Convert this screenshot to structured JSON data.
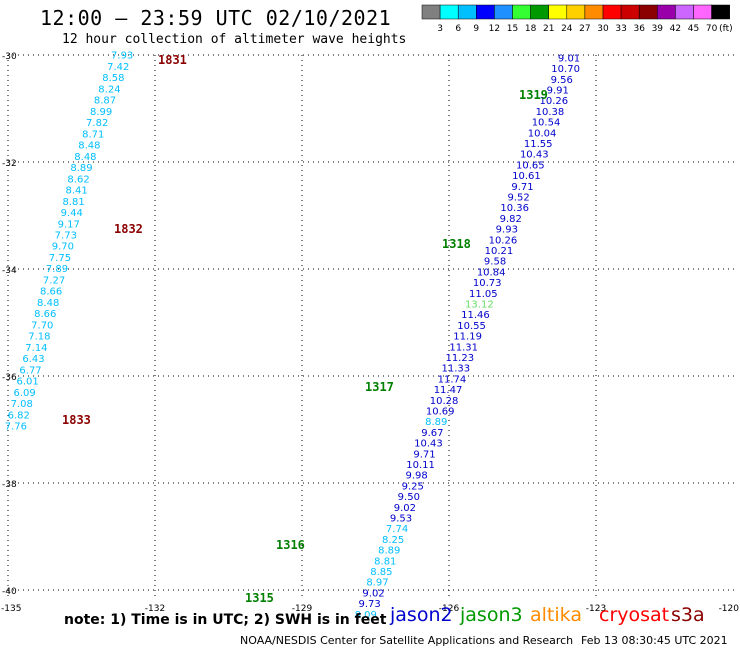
{
  "header": {
    "title": "12:00 – 23:59 UTC 02/10/2021",
    "subtitle": "12 hour collection of altimeter wave heights"
  },
  "legend": {
    "unit": "(ft)",
    "colors": [
      "#808080",
      "#00ffff",
      "#00bfff",
      "#0000ff",
      "#1e90ff",
      "#33ff33",
      "#009900",
      "#ffff00",
      "#ffd000",
      "#ff8c00",
      "#ff0000",
      "#cc0000",
      "#8b0000",
      "#9900aa",
      "#cc66ff",
      "#ff66ff",
      "#000000"
    ],
    "ticks": [
      "3",
      "6",
      "9",
      "12",
      "15",
      "18",
      "21",
      "24",
      "27",
      "30",
      "33",
      "36",
      "39",
      "42",
      "45",
      "70"
    ]
  },
  "grid": {
    "lon_labels": [
      "-135",
      "-132",
      "-129",
      "-126",
      "-123",
      "-120"
    ],
    "lat_labels": [
      "-30",
      "-32",
      "-34",
      "-36",
      "-38",
      "-40"
    ]
  },
  "tracks": [
    {
      "satellite": "cryosat",
      "color": "#00bfff",
      "passes": [
        {
          "label": "1831",
          "color": "#8b0000"
        },
        {
          "label": "1832",
          "color": "#8b0000"
        },
        {
          "label": "1833",
          "color": "#8b0000"
        }
      ],
      "points": [
        {
          "lon": -132.67,
          "lat": -30.07,
          "v": "7.93"
        },
        {
          "lon": -132.75,
          "lat": -30.28,
          "v": "7.42"
        },
        {
          "lon": -132.85,
          "lat": -30.49,
          "v": "8.58"
        },
        {
          "lon": -132.93,
          "lat": -30.7,
          "v": "8.24"
        },
        {
          "lon": -133.02,
          "lat": -30.91,
          "v": "8.87"
        },
        {
          "lon": -133.1,
          "lat": -31.12,
          "v": "8.99"
        },
        {
          "lon": -133.18,
          "lat": -31.33,
          "v": "7.82"
        },
        {
          "lon": -133.26,
          "lat": -31.54,
          "v": "8.71"
        },
        {
          "lon": -133.34,
          "lat": -31.75,
          "v": "8.48"
        },
        {
          "lon": -133.42,
          "lat": -31.96,
          "v": "8.48"
        },
        {
          "lon": -133.5,
          "lat": -32.17,
          "v": "8.89"
        },
        {
          "lon": -133.56,
          "lat": -32.38,
          "v": "8.62"
        },
        {
          "lon": -133.6,
          "lat": -32.59,
          "v": "8.41"
        },
        {
          "lon": -133.66,
          "lat": -32.8,
          "v": "8.81"
        },
        {
          "lon": -133.7,
          "lat": -33.01,
          "v": "9.44"
        },
        {
          "lon": -133.76,
          "lat": -33.22,
          "v": "9.17"
        },
        {
          "lon": -133.82,
          "lat": -33.43,
          "v": "7.73"
        },
        {
          "lon": -133.88,
          "lat": -33.64,
          "v": "9.70"
        },
        {
          "lon": -133.94,
          "lat": -33.85,
          "v": "7.75"
        },
        {
          "lon": -134.0,
          "lat": -34.06,
          "v": "7.89"
        },
        {
          "lon": -134.06,
          "lat": -34.27,
          "v": "7.27"
        },
        {
          "lon": -134.12,
          "lat": -34.48,
          "v": "8.66"
        },
        {
          "lon": -134.18,
          "lat": -34.69,
          "v": "8.48"
        },
        {
          "lon": -134.24,
          "lat": -34.9,
          "v": "8.66"
        },
        {
          "lon": -134.3,
          "lat": -35.11,
          "v": "7.70"
        },
        {
          "lon": -134.36,
          "lat": -35.32,
          "v": "7.18"
        },
        {
          "lon": -134.42,
          "lat": -35.53,
          "v": "7.14"
        },
        {
          "lon": -134.48,
          "lat": -35.74,
          "v": "6.43"
        },
        {
          "lon": -134.54,
          "lat": -35.95,
          "v": "6.77"
        },
        {
          "lon": -134.6,
          "lat": -36.16,
          "v": "6.01"
        },
        {
          "lon": -134.66,
          "lat": -36.37,
          "v": "6.09"
        },
        {
          "lon": -134.72,
          "lat": -36.58,
          "v": "7.08"
        },
        {
          "lon": -134.78,
          "lat": -36.79,
          "v": "6.82"
        },
        {
          "lon": -134.84,
          "lat": -37.0,
          "v": "7.76"
        }
      ]
    },
    {
      "satellite": "jason3",
      "color": "#0000cc",
      "passes": [
        {
          "label": "1319",
          "color": "#008000"
        },
        {
          "label": "1318",
          "color": "#008000"
        },
        {
          "label": "1317",
          "color": "#008000"
        },
        {
          "label": "1316",
          "color": "#008000"
        },
        {
          "label": "1315",
          "color": "#008000"
        }
      ],
      "points": [
        {
          "lon": -123.55,
          "lat": -30.12,
          "v": "9.01",
          "c": "#0000cc"
        },
        {
          "lon": -123.62,
          "lat": -30.32,
          "v": "10.70",
          "c": "#0000cc"
        },
        {
          "lon": -123.7,
          "lat": -30.52,
          "v": "9.56",
          "c": "#0000cc"
        },
        {
          "lon": -123.78,
          "lat": -30.72,
          "v": "9.91",
          "c": "#0000cc"
        },
        {
          "lon": -123.86,
          "lat": -30.92,
          "v": "10.26",
          "c": "#0000cc"
        },
        {
          "lon": -123.94,
          "lat": -31.12,
          "v": "10.38",
          "c": "#0000cc"
        },
        {
          "lon": -124.02,
          "lat": -31.32,
          "v": "10.54",
          "c": "#0000cc"
        },
        {
          "lon": -124.1,
          "lat": -31.52,
          "v": "10.04",
          "c": "#0000cc"
        },
        {
          "lon": -124.18,
          "lat": -31.72,
          "v": "11.55",
          "c": "#0000cc"
        },
        {
          "lon": -124.26,
          "lat": -31.92,
          "v": "10.43",
          "c": "#0000cc"
        },
        {
          "lon": -124.34,
          "lat": -32.12,
          "v": "10.65",
          "c": "#0000cc"
        },
        {
          "lon": -124.42,
          "lat": -32.32,
          "v": "10.61",
          "c": "#0000cc"
        },
        {
          "lon": -124.5,
          "lat": -32.52,
          "v": "9.71",
          "c": "#0000cc"
        },
        {
          "lon": -124.58,
          "lat": -32.72,
          "v": "9.52",
          "c": "#0000cc"
        },
        {
          "lon": -124.66,
          "lat": -32.92,
          "v": "10.36",
          "c": "#0000cc"
        },
        {
          "lon": -124.74,
          "lat": -33.12,
          "v": "9.82",
          "c": "#0000cc"
        },
        {
          "lon": -124.82,
          "lat": -33.32,
          "v": "9.93",
          "c": "#0000cc"
        },
        {
          "lon": -124.9,
          "lat": -33.52,
          "v": "10.26",
          "c": "#0000cc"
        },
        {
          "lon": -124.98,
          "lat": -33.72,
          "v": "10.21",
          "c": "#0000cc"
        },
        {
          "lon": -125.06,
          "lat": -33.92,
          "v": "9.58",
          "c": "#0000cc"
        },
        {
          "lon": -125.14,
          "lat": -34.12,
          "v": "10.84",
          "c": "#0000cc"
        },
        {
          "lon": -125.22,
          "lat": -34.32,
          "v": "10.73",
          "c": "#0000cc"
        },
        {
          "lon": -125.3,
          "lat": -34.52,
          "v": "11.05",
          "c": "#0000cc"
        },
        {
          "lon": -125.38,
          "lat": -34.72,
          "v": "13.12",
          "c": "#66dd66"
        },
        {
          "lon": -125.46,
          "lat": -34.92,
          "v": "11.46",
          "c": "#0000cc"
        },
        {
          "lon": -125.54,
          "lat": -35.12,
          "v": "10.55",
          "c": "#0000cc"
        },
        {
          "lon": -125.62,
          "lat": -35.32,
          "v": "11.19",
          "c": "#0000cc"
        },
        {
          "lon": -125.7,
          "lat": -35.52,
          "v": "11.31",
          "c": "#0000cc"
        },
        {
          "lon": -125.78,
          "lat": -35.72,
          "v": "11.23",
          "c": "#0000cc"
        },
        {
          "lon": -125.86,
          "lat": -35.92,
          "v": "11.33",
          "c": "#0000cc"
        },
        {
          "lon": -125.94,
          "lat": -36.12,
          "v": "11.74",
          "c": "#0000cc"
        },
        {
          "lon": -126.02,
          "lat": -36.32,
          "v": "11.47",
          "c": "#0000cc"
        },
        {
          "lon": -126.1,
          "lat": -36.52,
          "v": "10.28",
          "c": "#0000cc"
        },
        {
          "lon": -126.18,
          "lat": -36.72,
          "v": "10.69",
          "c": "#0000cc"
        },
        {
          "lon": -126.26,
          "lat": -36.92,
          "v": "8.89",
          "c": "#00bfff"
        },
        {
          "lon": -126.34,
          "lat": -37.12,
          "v": "9.67",
          "c": "#0000cc"
        },
        {
          "lon": -126.42,
          "lat": -37.32,
          "v": "10.43",
          "c": "#0000cc"
        },
        {
          "lon": -126.5,
          "lat": -37.52,
          "v": "9.71",
          "c": "#0000cc"
        },
        {
          "lon": -126.58,
          "lat": -37.72,
          "v": "10.11",
          "c": "#0000cc"
        },
        {
          "lon": -126.66,
          "lat": -37.92,
          "v": "9.98",
          "c": "#0000cc"
        },
        {
          "lon": -126.74,
          "lat": -38.12,
          "v": "9.25",
          "c": "#0000cc"
        },
        {
          "lon": -126.82,
          "lat": -38.32,
          "v": "9.50",
          "c": "#0000cc"
        },
        {
          "lon": -126.9,
          "lat": -38.52,
          "v": "9.02",
          "c": "#0000cc"
        },
        {
          "lon": -126.98,
          "lat": -38.72,
          "v": "9.53",
          "c": "#0000cc"
        },
        {
          "lon": -127.06,
          "lat": -38.92,
          "v": "7.74",
          "c": "#00bfff"
        },
        {
          "lon": -127.14,
          "lat": -39.12,
          "v": "8.25",
          "c": "#00bfff"
        },
        {
          "lon": -127.22,
          "lat": -39.32,
          "v": "8.89",
          "c": "#00bfff"
        },
        {
          "lon": -127.3,
          "lat": -39.52,
          "v": "8.81",
          "c": "#00bfff"
        },
        {
          "lon": -127.38,
          "lat": -39.72,
          "v": "8.85",
          "c": "#00bfff"
        },
        {
          "lon": -127.46,
          "lat": -39.92,
          "v": "8.97",
          "c": "#00bfff"
        },
        {
          "lon": -127.54,
          "lat": -40.12,
          "v": "9.02",
          "c": "#0000cc"
        },
        {
          "lon": -127.62,
          "lat": -40.32,
          "v": "9.73",
          "c": "#0000cc"
        },
        {
          "lon": -127.7,
          "lat": -40.52,
          "v": "8.09",
          "c": "#00bfff"
        }
      ]
    }
  ],
  "note": "note: 1) Time is in UTC; 2) SWH is in feet",
  "satellites": [
    {
      "name": "jason2",
      "color": "#0000cc"
    },
    {
      "name": "jason3",
      "color": "#009900"
    },
    {
      "name": "altika",
      "color": "#ff8c00"
    },
    {
      "name": "cryosat",
      "color": "#ff0000"
    },
    {
      "name": "s3a",
      "color": "#8b0000"
    }
  ],
  "footer": {
    "credit": "NOAA/NESDIS Center for Satellite Applications and Research",
    "timestamp": "Feb 13 08:30:45 UTC 2021"
  }
}
